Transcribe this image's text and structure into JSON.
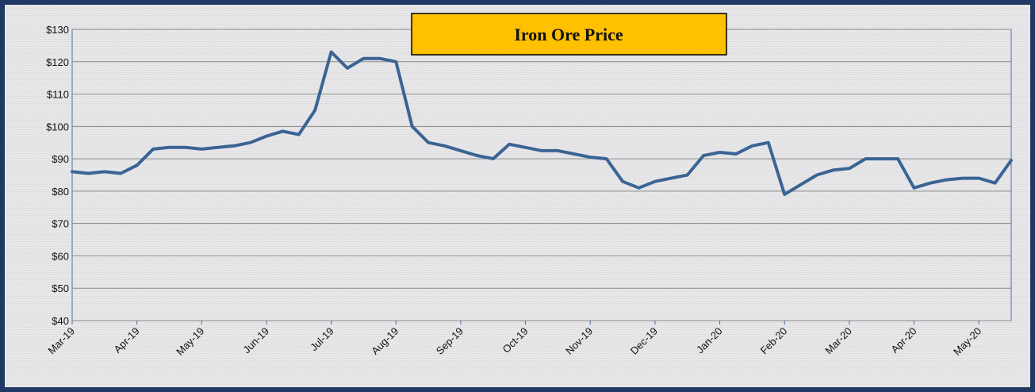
{
  "chart_data": {
    "type": "line",
    "title": "Iron Ore Price",
    "categories": [
      "Mar-19",
      null,
      null,
      null,
      "Apr-19",
      null,
      null,
      null,
      "May-19",
      null,
      null,
      null,
      "Jun-19",
      null,
      null,
      null,
      "Jul-19",
      null,
      null,
      null,
      "Aug-19",
      null,
      null,
      null,
      "Sep-19",
      null,
      null,
      null,
      "Oct-19",
      null,
      null,
      null,
      "Nov-19",
      null,
      null,
      null,
      "Dec-19",
      null,
      null,
      null,
      "Jan-20",
      null,
      null,
      null,
      "Feb-20",
      null,
      null,
      null,
      "Mar-20",
      null,
      null,
      null,
      "Apr-20",
      null,
      null,
      null,
      "May-20",
      null,
      null
    ],
    "values": [
      86,
      85.5,
      86,
      85.5,
      88,
      93,
      93.5,
      93.5,
      93,
      93.5,
      94,
      95,
      97,
      98.5,
      97.5,
      105,
      123,
      118,
      121,
      121,
      120,
      100,
      95,
      94,
      92.5,
      91,
      90,
      94.5,
      93.5,
      92.5,
      92.5,
      91.5,
      90.5,
      90,
      83,
      81,
      83,
      84,
      85,
      91,
      92,
      91.5,
      94,
      95,
      79,
      82,
      85,
      86.5,
      87,
      90,
      90,
      90,
      81,
      82.5,
      83.5,
      84,
      84,
      82.5,
      89.5
    ],
    "color": "#3a6494",
    "ylim": [
      40,
      130
    ],
    "yticks": [
      {
        "value": 40,
        "label": "$40"
      },
      {
        "value": 50,
        "label": "$50"
      },
      {
        "value": 60,
        "label": "$60"
      },
      {
        "value": 70,
        "label": "$70"
      },
      {
        "value": 80,
        "label": "$80"
      },
      {
        "value": 90,
        "label": "$90"
      },
      {
        "value": 100,
        "label": "$100"
      },
      {
        "value": 110,
        "label": "$110"
      },
      {
        "value": 120,
        "label": "$120"
      },
      {
        "value": 130,
        "label": "$130"
      }
    ],
    "grid": true
  }
}
